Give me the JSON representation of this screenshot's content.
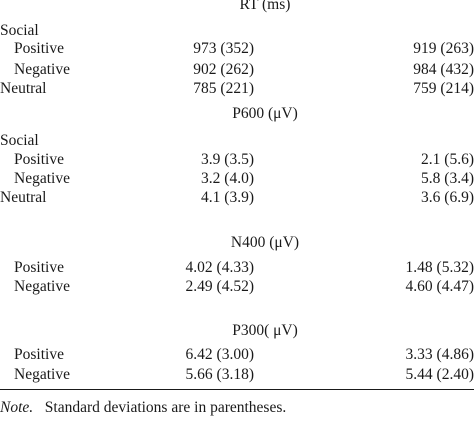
{
  "sections": [
    {
      "title": "RT (ms)",
      "rows": [
        {
          "label": "Social",
          "col1": "",
          "col2": ""
        },
        {
          "label": "Positive",
          "col1": "973 (352)",
          "col2": "919 (263)"
        },
        {
          "label": "Negative",
          "col1": "902 (262)",
          "col2": "984 (432)"
        },
        {
          "label": "Neutral",
          "col1": "785 (221)",
          "col2": "759 (214)"
        }
      ]
    },
    {
      "title": "P600 (μV)",
      "rows": [
        {
          "label": "Social",
          "col1": "",
          "col2": ""
        },
        {
          "label": "Positive",
          "col1": "3.9 (3.5)",
          "col2": "2.1 (5.6)"
        },
        {
          "label": "Negative",
          "col1": "3.2 (4.0)",
          "col2": "5.8 (3.4)"
        },
        {
          "label": "Neutral",
          "col1": "4.1 (3.9)",
          "col2": "3.6 (6.9)"
        }
      ]
    },
    {
      "title": "N400 (μV)",
      "rows": [
        {
          "label": "Positive",
          "col1": "4.02 (4.33)",
          "col2": "1.48 (5.32)"
        },
        {
          "label": "Negative",
          "col1": "2.49 (4.52)",
          "col2": "4.60 (4.47)"
        }
      ]
    },
    {
      "title": "P300( μV)",
      "rows": [
        {
          "label": "Positive",
          "col1": "6.42 (3.00)",
          "col2": "3.33 (4.86)"
        },
        {
          "label": "Negative",
          "col1": "5.66 (3.18)",
          "col2": "5.44 (2.40)"
        }
      ]
    }
  ],
  "note": {
    "label": "Note.",
    "text": "Standard deviations are in parentheses."
  }
}
